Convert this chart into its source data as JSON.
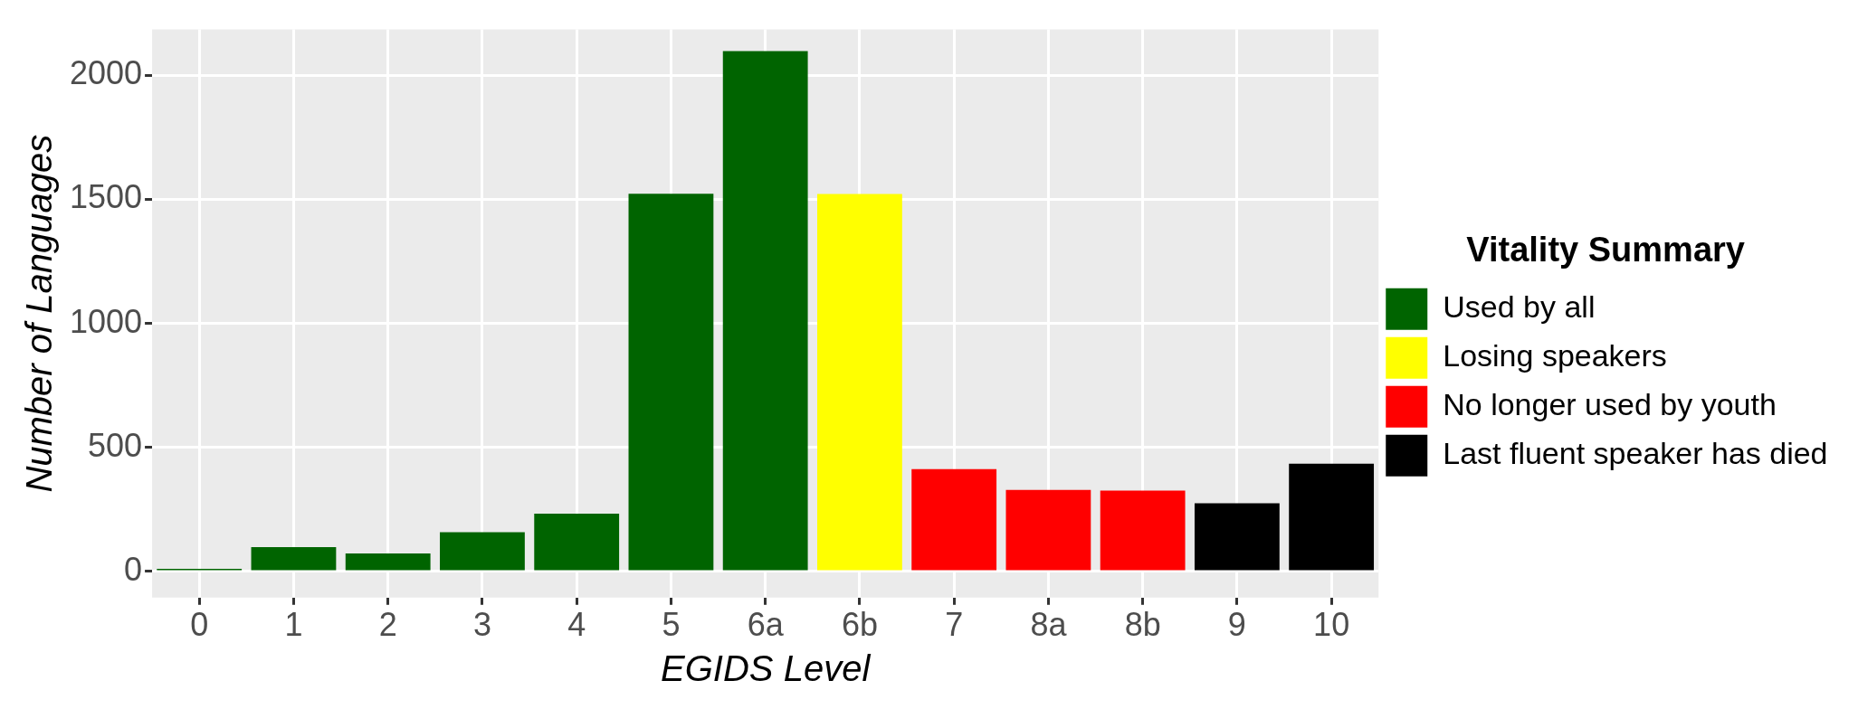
{
  "chart_data": {
    "type": "bar",
    "xlabel": "EGIDS Level",
    "ylabel": "Number of Languages",
    "legend_title": "Vitality Summary",
    "categories": [
      "0",
      "1",
      "2",
      "3",
      "4",
      "5",
      "6a",
      "6b",
      "7",
      "8a",
      "8b",
      "9",
      "10"
    ],
    "series": [
      {
        "name": "Used by all",
        "color": "#006400",
        "values": [
          5,
          98,
          73,
          159,
          233,
          1523,
          2098,
          null,
          null,
          null,
          null,
          null,
          null
        ]
      },
      {
        "name": "Losing speakers",
        "color": "#ffff00",
        "values": [
          null,
          null,
          null,
          null,
          null,
          null,
          null,
          1522,
          null,
          null,
          null,
          null,
          null
        ]
      },
      {
        "name": "No longer used by youth",
        "color": "#ff0000",
        "values": [
          null,
          null,
          null,
          null,
          null,
          null,
          null,
          null,
          413,
          329,
          326,
          null,
          null
        ]
      },
      {
        "name": "Last fluent speaker has died",
        "color": "#000000",
        "values": [
          null,
          null,
          null,
          null,
          null,
          null,
          null,
          null,
          null,
          null,
          null,
          275,
          435
        ]
      }
    ],
    "ylim": [
      -105,
      2185
    ],
    "yticks": [
      0,
      500,
      1000,
      1500,
      2000
    ],
    "grid": true,
    "legend": "right"
  }
}
